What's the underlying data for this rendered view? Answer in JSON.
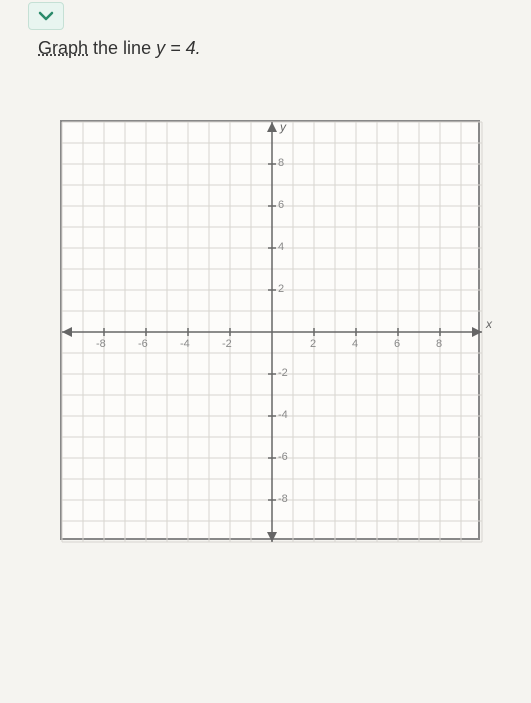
{
  "instruction": {
    "link_text": "Graph",
    "rest_text": " the line ",
    "equation": "y = 4."
  },
  "grid": {
    "type": "coordinate-plane",
    "background_color": "#fdfcfa",
    "border_color": "#888888",
    "gridline_color": "#d8d5d0",
    "axis_color": "#666666",
    "tick_color": "#666666",
    "x_min": -10,
    "x_max": 10,
    "x_step": 1,
    "x_label_step": 2,
    "y_min": -10,
    "y_max": 10,
    "y_step": 1,
    "y_label_step": 2,
    "x_axis_label": "x",
    "y_axis_label": "y",
    "x_ticks": [
      "-8",
      "-6",
      "-4",
      "-2",
      "2",
      "4",
      "6",
      "8"
    ],
    "y_ticks": [
      "8",
      "6",
      "4",
      "2",
      "-2",
      "-4",
      "-6",
      "-8"
    ],
    "label_fontsize": 11,
    "axis_label_fontsize": 12
  },
  "chevron_color": "#2a8a6a"
}
